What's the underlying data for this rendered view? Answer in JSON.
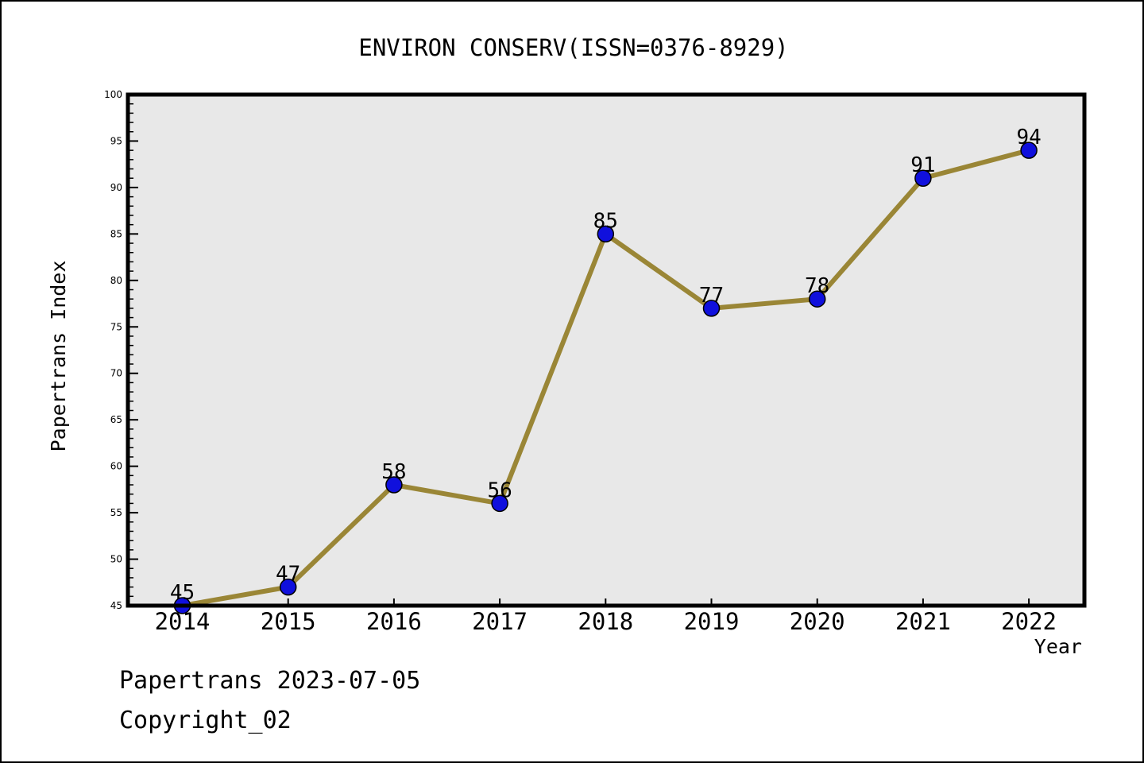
{
  "figure": {
    "background": "#ffffff",
    "border_color": "#000000"
  },
  "footer": {
    "line1": "Papertrans 2023-07-05",
    "line2": "Copyright_02"
  },
  "chart_data": {
    "type": "line",
    "title": "ENVIRON CONSERV(ISSN=0376-8929)",
    "x": [
      "2014",
      "2015",
      "2016",
      "2017",
      "2018",
      "2019",
      "2020",
      "2021",
      "2022"
    ],
    "values": [
      45,
      47,
      58,
      56,
      85,
      77,
      78,
      91,
      94
    ],
    "xlabel": "Year",
    "ylabel": "Papertrans Index",
    "ylim": [
      45,
      100
    ],
    "y_major_step": 5,
    "y_minor_step": 1,
    "grid": false,
    "legend": "none",
    "point_labels_shown": true,
    "colors": {
      "line": "#9a8636",
      "marker_fill": "#1010dd",
      "marker_edge": "#000000",
      "plot_background": "#e8e8e8",
      "axis": "#000000",
      "text": "#000000"
    }
  }
}
